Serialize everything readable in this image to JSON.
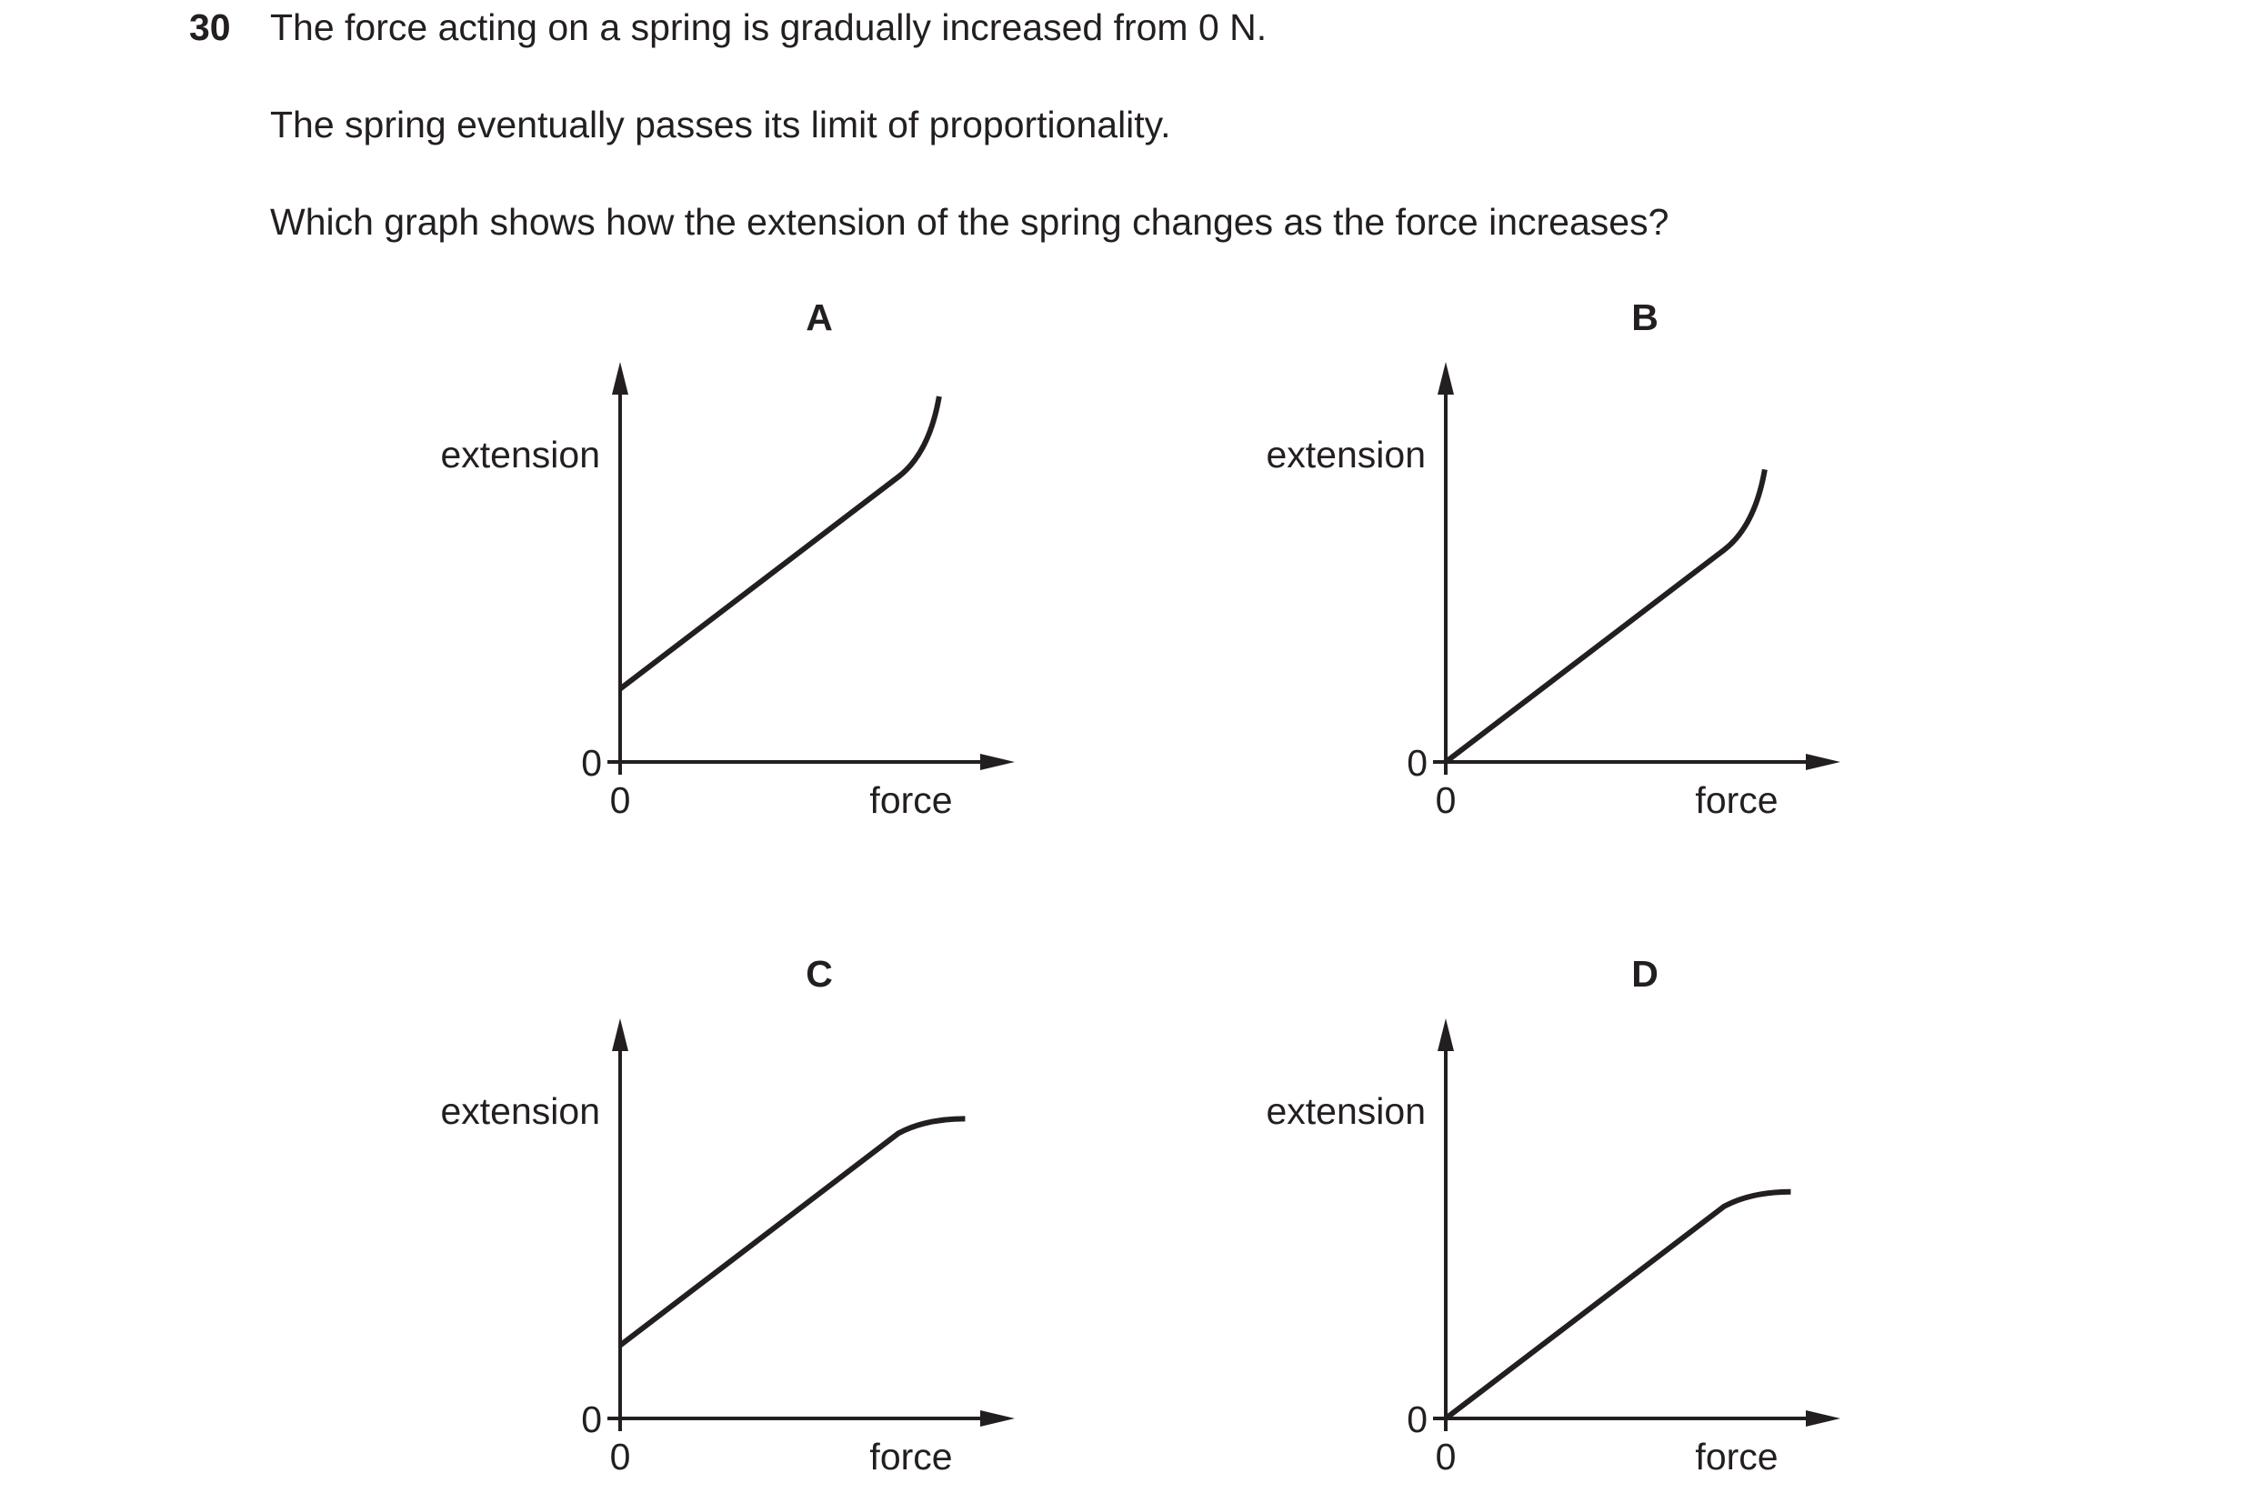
{
  "question": {
    "number": "30",
    "lines": [
      "The force acting on a spring is gradually increased from 0 N.",
      "The spring eventually passes its limit of proportionality.",
      "Which graph shows how the extension of the spring changes as the force increases?"
    ]
  },
  "chart_data": [
    {
      "type": "line",
      "title": "A",
      "xlabel": "force",
      "ylabel": "extension",
      "x_tick": "0",
      "y_tick": "0",
      "xlim": [
        0,
        1
      ],
      "ylim": [
        0,
        1
      ],
      "series": [
        {
          "x": [
            0,
            0.75,
            0.86
          ],
          "y": [
            0.2,
            0.78,
            1.0
          ],
          "curve": "up"
        }
      ]
    },
    {
      "type": "line",
      "title": "B",
      "xlabel": "force",
      "ylabel": "extension",
      "x_tick": "0",
      "y_tick": "0",
      "xlim": [
        0,
        1
      ],
      "ylim": [
        0,
        1
      ],
      "series": [
        {
          "x": [
            0,
            0.75,
            0.86
          ],
          "y": [
            0,
            0.58,
            0.8
          ],
          "curve": "up"
        }
      ]
    },
    {
      "type": "line",
      "title": "C",
      "xlabel": "force",
      "ylabel": "extension",
      "x_tick": "0",
      "y_tick": "0",
      "xlim": [
        0,
        1
      ],
      "ylim": [
        0,
        1
      ],
      "series": [
        {
          "x": [
            0,
            0.75,
            0.93
          ],
          "y": [
            0.2,
            0.78,
            0.82
          ],
          "curve": "flat"
        }
      ]
    },
    {
      "type": "line",
      "title": "D",
      "xlabel": "force",
      "ylabel": "extension",
      "x_tick": "0",
      "y_tick": "0",
      "xlim": [
        0,
        1
      ],
      "ylim": [
        0,
        1
      ],
      "series": [
        {
          "x": [
            0,
            0.75,
            0.93
          ],
          "y": [
            0,
            0.58,
            0.62
          ],
          "curve": "flat"
        }
      ]
    }
  ]
}
